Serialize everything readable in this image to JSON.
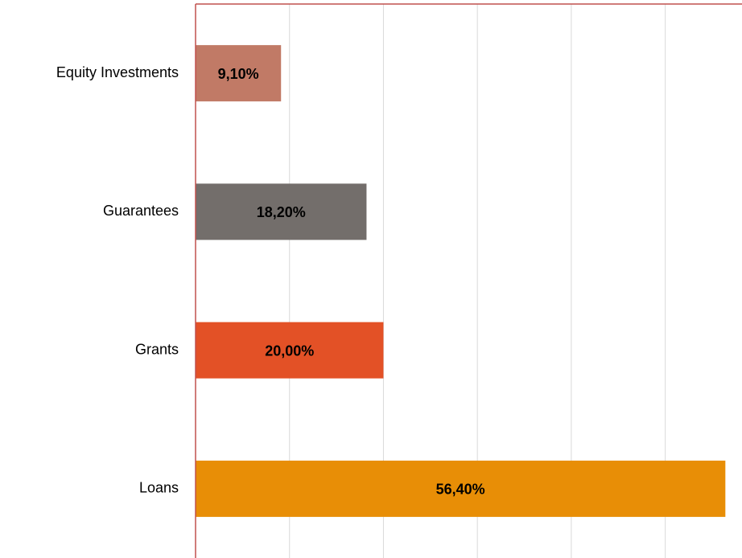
{
  "chart_data": {
    "type": "bar",
    "orientation": "horizontal",
    "categories": [
      "Equity Investments",
      "Guarantees",
      "Grants",
      "Loans"
    ],
    "values": [
      9.1,
      18.2,
      20.0,
      56.4
    ],
    "value_labels": [
      "9,10%",
      "18,20%",
      "20,00%",
      "56,40%"
    ],
    "colors": [
      "#c17a66",
      "#736e6b",
      "#e35126",
      "#e88e06"
    ],
    "xlim": [
      0,
      58
    ],
    "xticks": [
      0,
      10,
      20,
      30,
      40,
      50
    ],
    "grid": true
  }
}
